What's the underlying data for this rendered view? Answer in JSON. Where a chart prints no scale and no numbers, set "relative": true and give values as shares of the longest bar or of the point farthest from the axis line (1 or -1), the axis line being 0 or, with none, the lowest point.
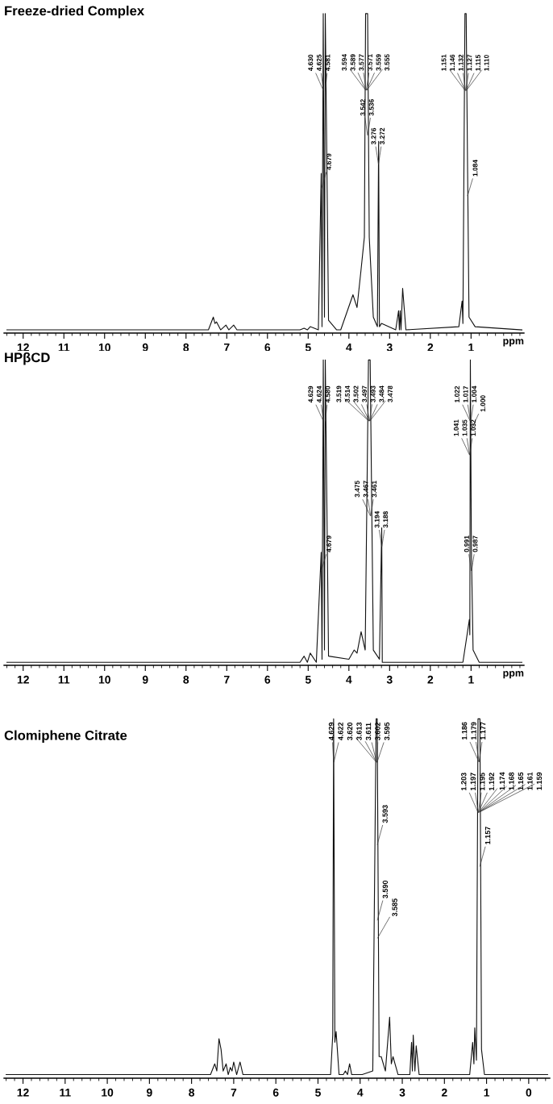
{
  "chart_data": [
    {
      "type": "line",
      "title": "Freeze-dried Complex",
      "xlabel": "ppm",
      "relative": true,
      "xlim": [
        12.47,
        -0.3
      ],
      "xticks": [
        12,
        11,
        10,
        9,
        8,
        7,
        6,
        5,
        4,
        3,
        2,
        1
      ],
      "grid": false,
      "legend": false,
      "series": [
        {
          "color": "#111111",
          "x": [
            12.4,
            7.45,
            7.33,
            7.29,
            7.25,
            7.15,
            7.02,
            6.95,
            6.83,
            6.75,
            5.2,
            5.1,
            5.02,
            4.95,
            4.75,
            4.68,
            4.66,
            4.63,
            4.6,
            4.58,
            4.5,
            4.3,
            4.2,
            3.9,
            3.8,
            3.7,
            3.62,
            3.59,
            3.555,
            3.54,
            3.5,
            3.4,
            3.3,
            3.27,
            3.25,
            3.2,
            2.85,
            2.78,
            2.76,
            2.74,
            2.72,
            2.68,
            2.6,
            1.3,
            1.22,
            1.2,
            1.15,
            1.12,
            1.084,
            1.05,
            0.9,
            -0.25
          ],
          "values": [
            0.01,
            0.01,
            0.05,
            0.03,
            0.035,
            0.01,
            0.025,
            0.01,
            0.025,
            0.01,
            0.01,
            0.015,
            0.01,
            0.02,
            0.01,
            0.5,
            0.02,
            1,
            0.05,
            1,
            0.04,
            0.01,
            0.01,
            0.12,
            0.08,
            0.2,
            0.3,
            1,
            1,
            1,
            0.3,
            0.05,
            0.02,
            0.6,
            0.02,
            0.03,
            0.01,
            0.07,
            0.01,
            0.07,
            0.01,
            0.14,
            0.01,
            0.02,
            0.1,
            0.03,
            1,
            1,
            0.5,
            0.05,
            0.02,
            0.01
          ]
        }
      ],
      "annotations": [
        {
          "text": "4.630",
          "x": 4.63,
          "y": 0.76
        },
        {
          "text": "4.625",
          "x": 4.625,
          "y": 0.76
        },
        {
          "text": "4.581",
          "x": 4.581,
          "y": 0.76
        },
        {
          "text": "3.594",
          "x": 3.594,
          "y": 0.761
        },
        {
          "text": "3.589",
          "x": 3.589,
          "y": 0.761
        },
        {
          "text": "3.577",
          "x": 3.577,
          "y": 0.761
        },
        {
          "text": "3.571",
          "x": 3.571,
          "y": 0.761
        },
        {
          "text": "3.559",
          "x": 3.559,
          "y": 0.761
        },
        {
          "text": "3.555",
          "x": 3.555,
          "y": 0.761
        },
        {
          "text": "3.542",
          "x": 3.542,
          "y": 0.62
        },
        {
          "text": "3.536",
          "x": 3.536,
          "y": 0.62
        },
        {
          "text": "4.679",
          "x": 4.679,
          "y": 0.45
        },
        {
          "text": "3.276",
          "x": 3.276,
          "y": 0.53
        },
        {
          "text": "3.272",
          "x": 3.272,
          "y": 0.53
        },
        {
          "text": "1.151",
          "x": 1.151,
          "y": 0.76
        },
        {
          "text": "1.146",
          "x": 1.146,
          "y": 0.76
        },
        {
          "text": "1.132",
          "x": 1.132,
          "y": 0.76
        },
        {
          "text": "1.127",
          "x": 1.127,
          "y": 0.76
        },
        {
          "text": "1.115",
          "x": 1.115,
          "y": 0.76
        },
        {
          "text": "1.110",
          "x": 1.11,
          "y": 0.76
        },
        {
          "text": "1.084",
          "x": 1.084,
          "y": 0.43
        }
      ]
    },
    {
      "type": "line",
      "title": "HPβCD",
      "xlabel": "ppm",
      "relative": true,
      "xlim": [
        12.47,
        -0.3
      ],
      "xticks": [
        12,
        11,
        10,
        9,
        8,
        7,
        6,
        5,
        4,
        3,
        2,
        1
      ],
      "grid": false,
      "legend": false,
      "series": [
        {
          "color": "#111111",
          "x": [
            12.4,
            5.2,
            5.1,
            5.02,
            4.95,
            4.8,
            4.68,
            4.66,
            4.629,
            4.6,
            4.58,
            4.5,
            4.0,
            3.87,
            3.8,
            3.7,
            3.6,
            3.519,
            3.478,
            3.4,
            3.25,
            3.194,
            3.18,
            1.2,
            1.041,
            1.03,
            1.017,
            0.991,
            0.95,
            0.8,
            -0.25
          ],
          "values": [
            0.01,
            0.01,
            0.03,
            0.01,
            0.04,
            0.01,
            0.37,
            0.02,
            1,
            0.05,
            1,
            0.03,
            0.02,
            0.05,
            0.04,
            0.11,
            0.05,
            1,
            1,
            0.05,
            0.02,
            0.45,
            0.01,
            0.01,
            0.15,
            0.1,
            1,
            0.37,
            0.05,
            0.01,
            0.01
          ]
        }
      ],
      "annotations": [
        {
          "text": "4.629",
          "x": 4.629,
          "y": 0.8
        },
        {
          "text": "4.624",
          "x": 4.624,
          "y": 0.8
        },
        {
          "text": "4.580",
          "x": 4.58,
          "y": 0.8
        },
        {
          "text": "3.519",
          "x": 3.519,
          "y": 0.801
        },
        {
          "text": "3.514",
          "x": 3.514,
          "y": 0.801
        },
        {
          "text": "3.502",
          "x": 3.502,
          "y": 0.801
        },
        {
          "text": "3.497",
          "x": 3.497,
          "y": 0.801
        },
        {
          "text": "3.493",
          "x": 3.493,
          "y": 0.801
        },
        {
          "text": "3.484",
          "x": 3.484,
          "y": 0.801
        },
        {
          "text": "3.478",
          "x": 3.478,
          "y": 0.801
        },
        {
          "text": "4.679",
          "x": 4.679,
          "y": 0.31
        },
        {
          "text": "3.475",
          "x": 3.475,
          "y": 0.49
        },
        {
          "text": "3.467",
          "x": 3.467,
          "y": 0.49
        },
        {
          "text": "3.461",
          "x": 3.461,
          "y": 0.49
        },
        {
          "text": "3.194",
          "x": 3.194,
          "y": 0.39
        },
        {
          "text": "3.188",
          "x": 3.188,
          "y": 0.39
        },
        {
          "text": "1.041",
          "x": 1.041,
          "y": 0.69
        },
        {
          "text": "1.035",
          "x": 1.035,
          "y": 0.69
        },
        {
          "text": "1.032",
          "x": 1.032,
          "y": 0.69
        },
        {
          "text": "1.022",
          "x": 1.022,
          "y": 0.8
        },
        {
          "text": "1.017",
          "x": 1.017,
          "y": 0.8
        },
        {
          "text": "1.004",
          "x": 1.004,
          "y": 0.8
        },
        {
          "text": "1.000",
          "x": 1.0,
          "y": 0.77
        },
        {
          "text": "0.991",
          "x": 0.991,
          "y": 0.31
        },
        {
          "text": "0.987",
          "x": 0.987,
          "y": 0.31
        }
      ]
    },
    {
      "type": "line",
      "title": "Clomiphene Citrate",
      "relative": true,
      "xlim": [
        12.45,
        -0.5
      ],
      "xticks": [
        12,
        11,
        10,
        9,
        8,
        7,
        6,
        5,
        4,
        3,
        2,
        1,
        0
      ],
      "grid": false,
      "legend": false,
      "series": [
        {
          "color": "#111111",
          "x": [
            12.4,
            7.55,
            7.45,
            7.4,
            7.35,
            7.3,
            7.25,
            7.18,
            7.13,
            7.08,
            7.04,
            7.0,
            6.93,
            6.85,
            6.78,
            4.7,
            4.65,
            4.629,
            4.6,
            4.57,
            4.5,
            4.4,
            4.35,
            4.3,
            4.25,
            4.2,
            3.95,
            3.7,
            3.62,
            3.595,
            3.55,
            3.5,
            3.4,
            3.3,
            3.26,
            3.22,
            3.1,
            2.82,
            2.78,
            2.76,
            2.74,
            2.7,
            2.67,
            2.6,
            1.4,
            1.33,
            1.3,
            1.28,
            1.24,
            1.203,
            1.157,
            1.12,
            1.05,
            -0.45
          ],
          "values": [
            0.01,
            0.01,
            0.04,
            0.02,
            0.11,
            0.08,
            0.02,
            0.04,
            0.01,
            0.03,
            0.02,
            0.045,
            0.01,
            0.045,
            0.01,
            0.01,
            0.12,
            1,
            0.1,
            0.13,
            0.01,
            0.01,
            0.02,
            0.01,
            0.04,
            0.01,
            0.01,
            0.02,
            1,
            1,
            0.06,
            0.06,
            0.02,
            0.17,
            0.04,
            0.06,
            0.01,
            0.01,
            0.1,
            0.02,
            0.12,
            0.02,
            0.09,
            0.01,
            0.01,
            0.1,
            0.04,
            0.14,
            0.05,
            1,
            1,
            0.08,
            0.01,
            0.01
          ]
        }
      ],
      "annotations": [
        {
          "text": "4.629",
          "x": 4.629,
          "y": 0.88
        },
        {
          "text": "4.622",
          "x": 4.622,
          "y": 0.88
        },
        {
          "text": "3.620",
          "x": 3.62,
          "y": 0.88
        },
        {
          "text": "3.613",
          "x": 3.613,
          "y": 0.88
        },
        {
          "text": "3.611",
          "x": 3.611,
          "y": 0.88
        },
        {
          "text": "3.602",
          "x": 3.602,
          "y": 0.88
        },
        {
          "text": "3.595",
          "x": 3.595,
          "y": 0.88
        },
        {
          "text": "3.593",
          "x": 3.593,
          "y": 0.65
        },
        {
          "text": "3.590",
          "x": 3.59,
          "y": 0.44
        },
        {
          "text": "3.585",
          "x": 3.585,
          "y": 0.39
        },
        {
          "text": "1.203",
          "x": 1.203,
          "y": 0.74
        },
        {
          "text": "1.197",
          "x": 1.197,
          "y": 0.74
        },
        {
          "text": "1.195",
          "x": 1.195,
          "y": 0.74
        },
        {
          "text": "1.192",
          "x": 1.192,
          "y": 0.74
        },
        {
          "text": "1.186",
          "x": 1.186,
          "y": 0.881
        },
        {
          "text": "1.179",
          "x": 1.179,
          "y": 0.881
        },
        {
          "text": "1.177",
          "x": 1.177,
          "y": 0.881
        },
        {
          "text": "1.174",
          "x": 1.174,
          "y": 0.741
        },
        {
          "text": "1.168",
          "x": 1.168,
          "y": 0.741
        },
        {
          "text": "1.165",
          "x": 1.165,
          "y": 0.741
        },
        {
          "text": "1.161",
          "x": 1.161,
          "y": 0.741
        },
        {
          "text": "1.159",
          "x": 1.159,
          "y": 0.741
        },
        {
          "text": "1.157",
          "x": 1.157,
          "y": 0.59
        }
      ]
    }
  ]
}
